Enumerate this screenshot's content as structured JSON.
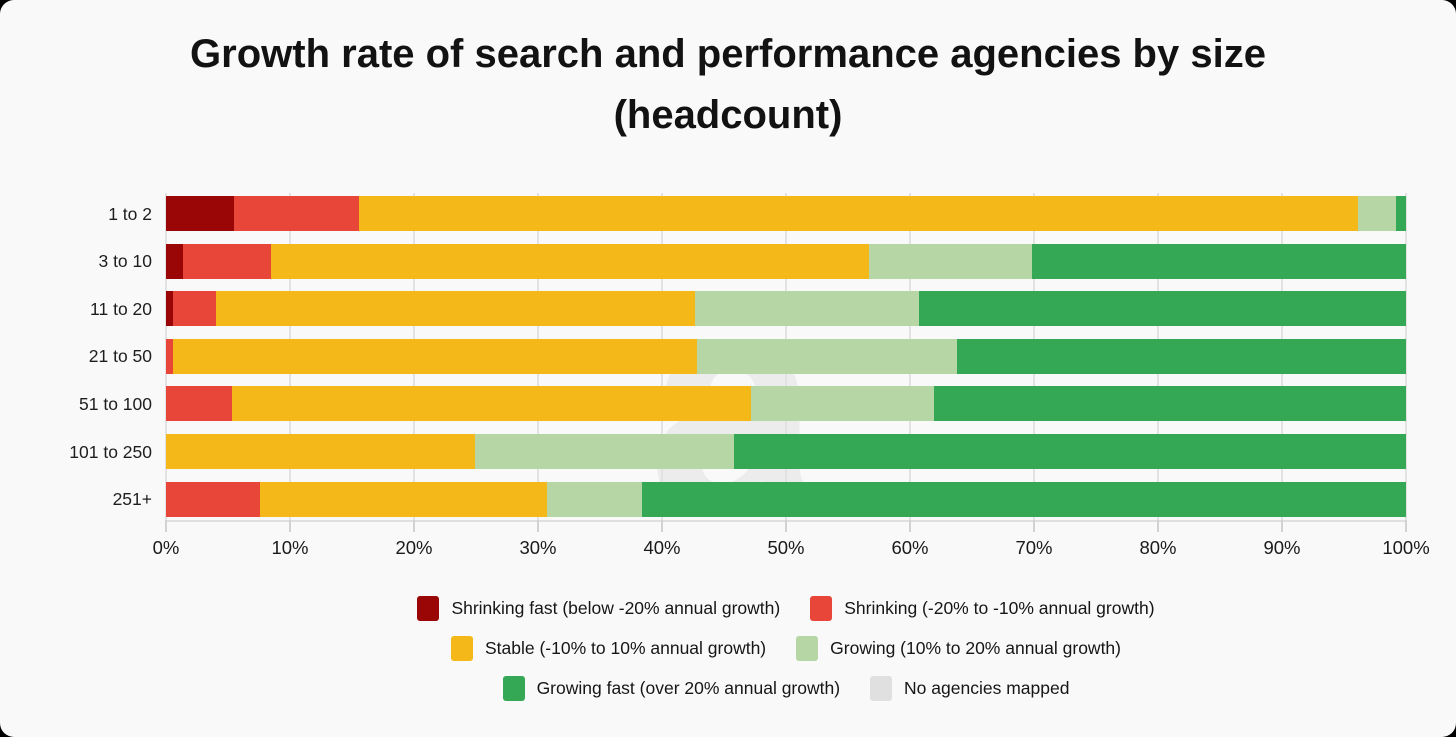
{
  "title": {
    "line1": "Growth rate of search and performance agencies by size",
    "line2": "(headcount)"
  },
  "watermark_glyph": "a",
  "colors": {
    "background": "#f9f9f9",
    "gridline": "#e2e2e2",
    "shrinking_fast": "#9a0606",
    "shrinking": "#e84638",
    "stable": "#f4b819",
    "growing": "#b6d7a5",
    "growing_fast": "#35a855",
    "no_agencies": "#e0e0e0",
    "text": "#161616"
  },
  "chart_data": {
    "type": "bar",
    "orientation": "horizontal",
    "stacked": true,
    "grid": true,
    "legend_position": "bottom",
    "xlim": [
      0,
      100
    ],
    "x_ticks": [
      "0%",
      "10%",
      "20%",
      "30%",
      "40%",
      "50%",
      "60%",
      "70%",
      "80%",
      "90%",
      "100%"
    ],
    "categories": [
      "1 to 2",
      "3 to 10",
      "11 to 20",
      "21 to 50",
      "51 to 100",
      "101 to 250",
      "251+"
    ],
    "series": [
      {
        "name": "Shrinking fast (below -20% annual growth)",
        "color": "#9a0606",
        "values": [
          5.5,
          1.4,
          0.6,
          0,
          0,
          0,
          0
        ]
      },
      {
        "name": "Shrinking (-20% to -10% annual growth)",
        "color": "#e84638",
        "values": [
          10.1,
          7.1,
          3.4,
          0.6,
          5.3,
          0,
          7.6
        ]
      },
      {
        "name": "Stable (-10% to 10% annual growth)",
        "color": "#f4b819",
        "values": [
          80.5,
          48.2,
          38.7,
          42.2,
          41.9,
          24.9,
          23.1
        ]
      },
      {
        "name": "Growing (10% to 20% annual growth)",
        "color": "#b6d7a5",
        "values": [
          3.1,
          13.1,
          18.0,
          21.0,
          14.7,
          20.9,
          7.7
        ]
      },
      {
        "name": "Growing fast (over 20% annual growth)",
        "color": "#35a855",
        "values": [
          0.8,
          30.2,
          39.3,
          36.2,
          38.1,
          54.2,
          61.6
        ]
      },
      {
        "name": "No agencies mapped",
        "color": "#e0e0e0",
        "values": [
          0,
          0,
          0,
          0,
          0,
          0,
          0
        ]
      }
    ],
    "legend_rows": [
      [
        0,
        1
      ],
      [
        2,
        3
      ],
      [
        4,
        5
      ]
    ]
  }
}
